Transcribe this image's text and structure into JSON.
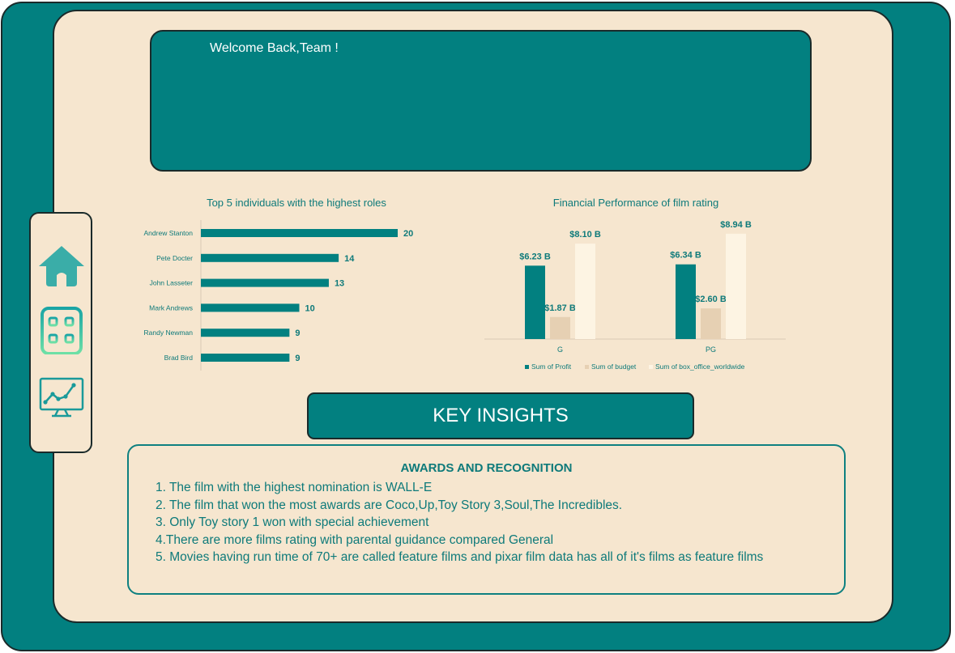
{
  "welcome": {
    "text": "Welcome Back,Team !"
  },
  "sidebar": {
    "items": [
      {
        "icon": "home-icon"
      },
      {
        "icon": "grid-icon"
      },
      {
        "icon": "line-chart-monitor-icon"
      }
    ]
  },
  "colors": {
    "teal": "#028080",
    "cream": "#f6e6cf",
    "budget": "#e6d0b3",
    "box_office": "#fdf4e3",
    "text_teal": "#0e7a7a"
  },
  "chart_data": [
    {
      "type": "bar",
      "orientation": "horizontal",
      "title": "Top 5 individuals with the highest roles",
      "categories": [
        "Andrew Stanton",
        "Pete Docter",
        "John Lasseter",
        "Mark Andrews",
        "Randy Newman",
        "Brad Bird"
      ],
      "values": [
        20,
        14,
        13,
        10,
        9,
        9
      ],
      "labels": [
        "20",
        "14",
        "13",
        "10",
        "9",
        "9"
      ],
      "xlim": [
        0,
        20
      ],
      "grid": false
    },
    {
      "type": "bar",
      "title": "Financial Performance of film rating",
      "categories": [
        "G",
        "PG"
      ],
      "series": [
        {
          "name": "Sum of Profit",
          "values": [
            6.23,
            6.34
          ],
          "labels": [
            "$6.23 B",
            "$6.34 B"
          ]
        },
        {
          "name": "Sum of budget",
          "values": [
            1.87,
            2.6
          ],
          "labels": [
            "$1.87 B",
            "$2.60 B"
          ]
        },
        {
          "name": "Sum of box_office_worldwide",
          "values": [
            8.1,
            8.94
          ],
          "labels": [
            "$8.10 B",
            "$8.94 B"
          ]
        }
      ],
      "ylim": [
        0,
        9
      ],
      "legend": "bottom",
      "grid": false
    }
  ],
  "key_insights": {
    "title": "KEY INSIGHTS"
  },
  "awards": {
    "title": "AWARDS AND RECOGNITION",
    "items": [
      "1. The film with the highest nomination is WALL-E",
      "2. The film that won the most awards are Coco,Up,Toy Story 3,Soul,The Incredibles.",
      "3. Only Toy story 1 won with special achievement",
      "4.There are more films rating  with parental guidance compared General",
      "5. Movies having run time of 70+ are called feature films and pixar film data has all of it's films as feature films"
    ]
  }
}
